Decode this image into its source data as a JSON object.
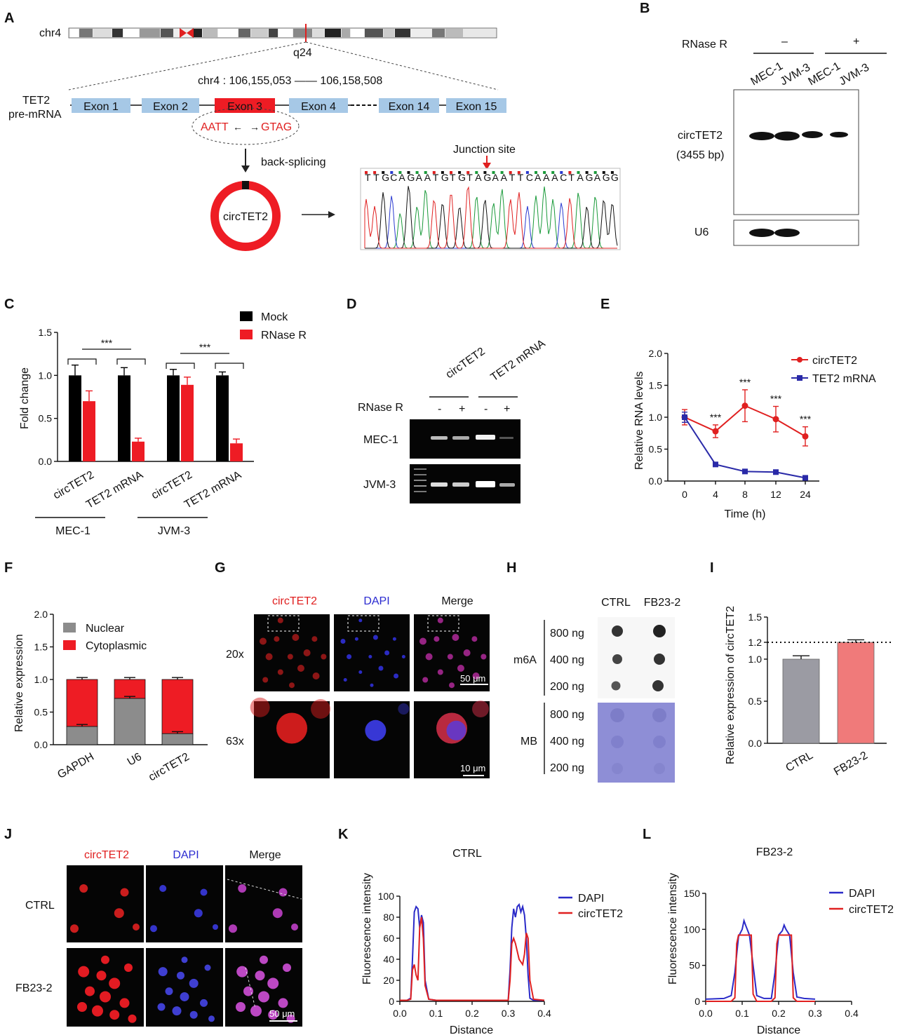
{
  "panel_labels": [
    "A",
    "B",
    "C",
    "D",
    "E",
    "F",
    "G",
    "H",
    "I",
    "J",
    "K",
    "L"
  ],
  "panelA": {
    "chromosome": "chr4",
    "band": "q24",
    "coords": "chr4 : 106,155,053 —— 106,158,508",
    "gene_label_1": "TET2",
    "gene_label_2": "pre-mRNA",
    "exons": [
      "Exon 1",
      "Exon 2",
      "Exon 3",
      "Exon 4",
      "Exon 14",
      "Exon 15"
    ],
    "splice_left": "AATT",
    "splice_right": "GTAG",
    "arrow_label": "back-splicing",
    "circ_label": "circTET2",
    "junction_label": "Junction site",
    "sequence": [
      "T",
      "T",
      "G",
      "C",
      "A",
      "G",
      "A",
      "A",
      "T",
      "G",
      "T",
      "G",
      "T",
      "A",
      "G",
      "A",
      "A",
      "T",
      "T",
      "C",
      "A",
      "A",
      "A",
      "C",
      "T",
      "A",
      "G",
      "A",
      "G",
      "G"
    ]
  },
  "panelB": {
    "rnase_label": "RNase R",
    "minus": "–",
    "plus": "+",
    "lanes": [
      "MEC-1",
      "JVM-3",
      "MEC-1",
      "JVM-3"
    ],
    "band1_label_1": "circTET2",
    "band1_label_2": "(3455 bp)",
    "band2_label": "U6"
  },
  "panelC": {
    "ylabel": "Fold change",
    "legend": [
      "Mock",
      "RNase R"
    ],
    "colors": {
      "mock": "#000000",
      "rnase": "#ee1c24"
    },
    "sig": "***",
    "group_labels": [
      "MEC-1",
      "JVM-3"
    ],
    "chart_data": {
      "type": "bar",
      "categories": [
        "circTET2",
        "TET2 mRNA",
        "circTET2",
        "TET2 mRNA"
      ],
      "series": [
        {
          "name": "Mock",
          "values": [
            1.0,
            1.0,
            1.0,
            1.0
          ],
          "errors": [
            0.12,
            0.09,
            0.07,
            0.04
          ]
        },
        {
          "name": "RNase R",
          "values": [
            0.7,
            0.23,
            0.89,
            0.21
          ],
          "errors": [
            0.12,
            0.04,
            0.09,
            0.05
          ]
        }
      ],
      "ylim": [
        0,
        1.5
      ],
      "yticks": [
        "0.0",
        "0.5",
        "1.0",
        "1.5"
      ]
    }
  },
  "panelD": {
    "col_labels": [
      "circTET2",
      "TET2 mRNA"
    ],
    "rnase_label": "RNase R",
    "signs": [
      "-",
      "+",
      "-",
      "+"
    ],
    "rows": [
      "MEC-1",
      "JVM-3"
    ]
  },
  "panelE": {
    "ylabel": "Relative RNA levels",
    "xlabel": "Time (h)",
    "sig": "***",
    "chart_data": {
      "type": "line",
      "x": [
        "0",
        "4",
        "8",
        "12",
        "24"
      ],
      "series": [
        {
          "name": "circTET2",
          "color": "#e02020",
          "values": [
            1.0,
            0.78,
            1.18,
            0.97,
            0.7
          ],
          "errors": [
            0.12,
            0.1,
            0.25,
            0.2,
            0.15
          ]
        },
        {
          "name": "TET2 mRNA",
          "color": "#2a2aa8",
          "values": [
            1.0,
            0.26,
            0.15,
            0.14,
            0.05
          ],
          "errors": [
            0.08,
            0.02,
            0.02,
            0.02,
            0.01
          ]
        }
      ],
      "ylim": [
        0,
        2.0
      ],
      "yticks": [
        "0.0",
        "0.5",
        "1.0",
        "1.5",
        "2.0"
      ]
    }
  },
  "panelF": {
    "ylabel": "Relative expression",
    "legend": [
      "Nuclear",
      "Cytoplasmic"
    ],
    "colors": {
      "nuclear": "#8c8c8c",
      "cyto": "#ee1c24"
    },
    "chart_data": {
      "type": "bar",
      "categories": [
        "GAPDH",
        "U6",
        "circTET2"
      ],
      "series": [
        {
          "name": "Nuclear",
          "values": [
            0.28,
            0.71,
            0.17
          ]
        },
        {
          "name": "Cytoplasmic",
          "values": [
            0.72,
            0.29,
            0.83
          ]
        }
      ],
      "ylim": [
        0,
        2.0
      ],
      "yticks": [
        "0.0",
        "0.5",
        "1.0",
        "1.5",
        "2.0"
      ]
    }
  },
  "panelG": {
    "cols": [
      "circTET2",
      "DAPI",
      "Merge"
    ],
    "rows": [
      "20x",
      "63x"
    ],
    "scale1": "50 μm",
    "scale2": "10 μm"
  },
  "panelH": {
    "cols": [
      "CTRL",
      "FB23-2"
    ],
    "group1": "m6A",
    "group2": "MB",
    "amounts": [
      "800 ng",
      "400 ng",
      "200 ng",
      "800 ng",
      "400 ng",
      "200 ng"
    ]
  },
  "panelI": {
    "ylabel": "Relative expression of circTET2",
    "chart_data": {
      "type": "bar",
      "categories": [
        "CTRL",
        "FB23-2"
      ],
      "values": [
        1.0,
        1.2
      ],
      "errors": [
        0.04,
        0.03
      ],
      "colors": [
        "#9b9ba3",
        "#f07a7a"
      ],
      "reference_line": 1.2,
      "ylim": [
        0,
        1.5
      ],
      "yticks": [
        "0.0",
        "0.5",
        "1.0",
        "1.2",
        "1.5"
      ]
    }
  },
  "panelJ": {
    "cols": [
      "circTET2",
      "DAPI",
      "Merge"
    ],
    "rows": [
      "CTRL",
      "FB23-2"
    ],
    "scale": "50 μm"
  },
  "panelK": {
    "title": "CTRL",
    "ylabel": "Fluorescence intensity",
    "xlabel": "Distance",
    "legend": [
      "DAPI",
      "circTET2"
    ],
    "chart_data": {
      "type": "line",
      "xlim": [
        0,
        0.4
      ],
      "ylim": [
        0,
        100
      ],
      "xticks": [
        "0.0",
        "0.1",
        "0.2",
        "0.3",
        "0.4"
      ],
      "yticks": [
        "0",
        "20",
        "40",
        "60",
        "80",
        "100"
      ],
      "series": [
        {
          "name": "DAPI",
          "color": "#2a2ac8",
          "x": [
            0,
            0.02,
            0.03,
            0.035,
            0.04,
            0.045,
            0.05,
            0.055,
            0.06,
            0.065,
            0.07,
            0.08,
            0.1,
            0.2,
            0.3,
            0.305,
            0.31,
            0.315,
            0.32,
            0.325,
            0.33,
            0.335,
            0.34,
            0.345,
            0.35,
            0.355,
            0.36,
            0.37,
            0.4
          ],
          "values": [
            1,
            1,
            3,
            40,
            85,
            90,
            88,
            70,
            82,
            75,
            20,
            2,
            1,
            1,
            1,
            30,
            70,
            88,
            80,
            90,
            92,
            85,
            90,
            82,
            60,
            25,
            3,
            1,
            1
          ]
        },
        {
          "name": "circTET2",
          "color": "#e02020",
          "x": [
            0,
            0.02,
            0.03,
            0.035,
            0.04,
            0.045,
            0.05,
            0.055,
            0.06,
            0.065,
            0.07,
            0.08,
            0.1,
            0.2,
            0.3,
            0.305,
            0.31,
            0.315,
            0.32,
            0.33,
            0.34,
            0.345,
            0.35,
            0.355,
            0.36,
            0.37,
            0.4
          ],
          "values": [
            1,
            1,
            2,
            30,
            35,
            25,
            20,
            70,
            80,
            60,
            15,
            2,
            1,
            1,
            1,
            20,
            55,
            60,
            55,
            40,
            35,
            45,
            65,
            60,
            20,
            2,
            1
          ]
        }
      ]
    }
  },
  "panelL": {
    "title": "FB23-2",
    "ylabel": "Fluorescence intensity",
    "xlabel": "Distance",
    "legend": [
      "DAPI",
      "circTET2"
    ],
    "chart_data": {
      "type": "line",
      "xlim": [
        0,
        0.4
      ],
      "ylim": [
        0,
        150
      ],
      "xticks": [
        "0.0",
        "0.1",
        "0.2",
        "0.3",
        "0.4"
      ],
      "yticks": [
        "0",
        "50",
        "100",
        "150"
      ],
      "series": [
        {
          "name": "DAPI",
          "color": "#2a2ac8",
          "x": [
            0,
            0.05,
            0.07,
            0.08,
            0.09,
            0.1,
            0.105,
            0.11,
            0.12,
            0.13,
            0.14,
            0.16,
            0.18,
            0.19,
            0.2,
            0.21,
            0.215,
            0.22,
            0.23,
            0.24,
            0.25,
            0.27,
            0.3
          ],
          "values": [
            3,
            4,
            8,
            40,
            90,
            100,
            112,
            105,
            92,
            50,
            8,
            4,
            4,
            40,
            92,
            98,
            106,
            100,
            92,
            40,
            6,
            4,
            3
          ]
        },
        {
          "name": "circTET2",
          "color": "#e02020",
          "x": [
            0,
            0.05,
            0.07,
            0.08,
            0.085,
            0.09,
            0.1,
            0.11,
            0.12,
            0.125,
            0.13,
            0.14,
            0.16,
            0.18,
            0.19,
            0.195,
            0.2,
            0.21,
            0.22,
            0.23,
            0.235,
            0.24,
            0.25,
            0.3
          ],
          "values": [
            0,
            0,
            0,
            5,
            80,
            92,
            92,
            92,
            92,
            92,
            10,
            0,
            0,
            0,
            5,
            80,
            92,
            92,
            92,
            92,
            92,
            5,
            0,
            0
          ]
        }
      ]
    }
  }
}
